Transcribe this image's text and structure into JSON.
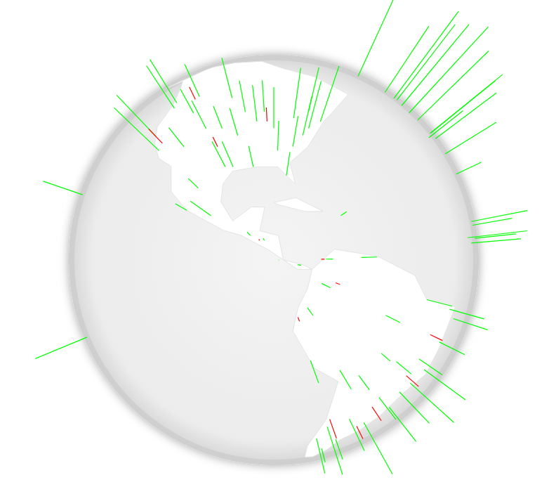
{
  "chart_data": {
    "type": "globe",
    "series": [
      {
        "color": "#00ff00",
        "values": [
          [
            -75,
            40,
            40
          ],
          [
            -80,
            35,
            30
          ],
          [
            -85,
            40,
            35
          ],
          [
            -90,
            42,
            30
          ],
          [
            -95,
            38,
            25
          ],
          [
            -100,
            40,
            20
          ],
          [
            -105,
            40,
            25
          ],
          [
            -110,
            35,
            20
          ],
          [
            -118,
            34,
            45
          ],
          [
            -122,
            38,
            40
          ],
          [
            -122,
            47,
            35
          ],
          [
            -112,
            45,
            20
          ],
          [
            -97,
            30,
            30
          ],
          [
            -90,
            30,
            25
          ],
          [
            -82,
            28,
            30
          ],
          [
            -71,
            42,
            45
          ],
          [
            -74,
            45,
            35
          ],
          [
            -79,
            43,
            40
          ],
          [
            -88,
            45,
            25
          ],
          [
            -100,
            50,
            30
          ],
          [
            -114,
            51,
            25
          ],
          [
            -123,
            49,
            35
          ],
          [
            -94,
            45,
            25
          ],
          [
            -84,
            34,
            30
          ],
          [
            -77,
            38,
            35
          ],
          [
            -95,
            30,
            30
          ],
          [
            -105,
            20,
            15
          ],
          [
            -99,
            19,
            35
          ],
          [
            -103,
            25,
            15
          ],
          [
            -90,
            15,
            15
          ],
          [
            -87,
            14,
            12
          ],
          [
            -84,
            10,
            12
          ],
          [
            -80,
            9,
            15
          ],
          [
            -75,
            5,
            20
          ],
          [
            -74,
            10,
            15
          ],
          [
            -66,
            10,
            20
          ],
          [
            -70,
            19,
            10
          ],
          [
            -78,
            0,
            18
          ],
          [
            -77,
            -12,
            25
          ],
          [
            -70,
            -15,
            20
          ],
          [
            -65,
            -17,
            15
          ],
          [
            -60,
            -3,
            15
          ],
          [
            -48,
            -1,
            20
          ],
          [
            -38,
            -5,
            25
          ],
          [
            -35,
            -8,
            25
          ],
          [
            -40,
            -13,
            20
          ],
          [
            -43,
            -20,
            35
          ],
          [
            -47,
            -23,
            40
          ],
          [
            -50,
            -25,
            30
          ],
          [
            -51,
            -30,
            30
          ],
          [
            -58,
            -34,
            40
          ],
          [
            -64,
            -31,
            25
          ],
          [
            -70,
            -33,
            35
          ],
          [
            -72,
            -38,
            25
          ],
          [
            -55,
            -15,
            15
          ],
          [
            -57,
            -25,
            20
          ],
          [
            -47,
            -16,
            20
          ],
          [
            -60,
            -12,
            10
          ],
          [
            -65,
            -40,
            15
          ],
          [
            -68,
            -45,
            10
          ],
          [
            0,
            51,
            80
          ],
          [
            2,
            48,
            90
          ],
          [
            -3,
            40,
            70
          ],
          [
            -8,
            40,
            60
          ],
          [
            -4,
            54,
            80
          ],
          [
            -2,
            57,
            60
          ],
          [
            -6,
            53,
            70
          ],
          [
            -9,
            38,
            55
          ],
          [
            -1,
            45,
            75
          ],
          [
            -17,
            14,
            40
          ],
          [
            -5,
            33,
            45
          ],
          [
            3,
            7,
            50
          ],
          [
            -1,
            6,
            40
          ],
          [
            -8,
            12,
            30
          ],
          [
            -13,
            9,
            30
          ],
          [
            -15,
            27,
            20
          ],
          [
            -25,
            38,
            30
          ],
          [
            -22,
            64,
            60
          ],
          [
            -157,
            21,
            30
          ],
          [
            -150,
            -17,
            40
          ]
        ]
      },
      {
        "color": "#ff0000",
        "values": [
          [
            -118,
            36,
            15
          ],
          [
            -100,
            35,
            10
          ],
          [
            -87,
            42,
            12
          ],
          [
            -115,
            50,
            10
          ],
          [
            -75,
            10,
            8
          ],
          [
            -80,
            -2,
            8
          ],
          [
            -70,
            -30,
            15
          ],
          [
            -50,
            -20,
            12
          ],
          [
            -60,
            -35,
            10
          ],
          [
            -58,
            -28,
            12
          ],
          [
            -45,
            -10,
            10
          ],
          [
            -88,
            14,
            6
          ],
          [
            -72,
            5,
            8
          ]
        ]
      }
    ]
  }
}
